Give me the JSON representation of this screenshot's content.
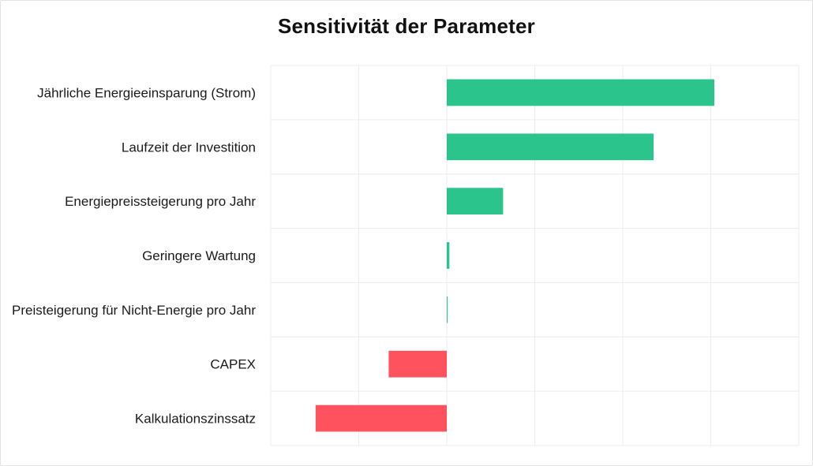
{
  "chart_data": {
    "type": "bar",
    "orientation": "horizontal",
    "title": "Sensitivität der Parameter",
    "categories": [
      "Jährliche Energieeinsparung (Strom)",
      "Laufzeit der Investition",
      "Energiepreissteigerung pro Jahr",
      "Geringere Wartung",
      "Preisteigerung für Nicht-Energie pro Jahr",
      "CAPEX",
      "Kalkulationszinssatz"
    ],
    "values": [
      3.04,
      2.35,
      0.64,
      0.03,
      0.01,
      -0.66,
      -1.49
    ],
    "xlim": [
      -2,
      4
    ],
    "x_axis_labels_shown": false,
    "grid": true,
    "colors": {
      "positive": "#2bc48d",
      "negative": "#fe525f",
      "grid": "#ececec"
    }
  }
}
